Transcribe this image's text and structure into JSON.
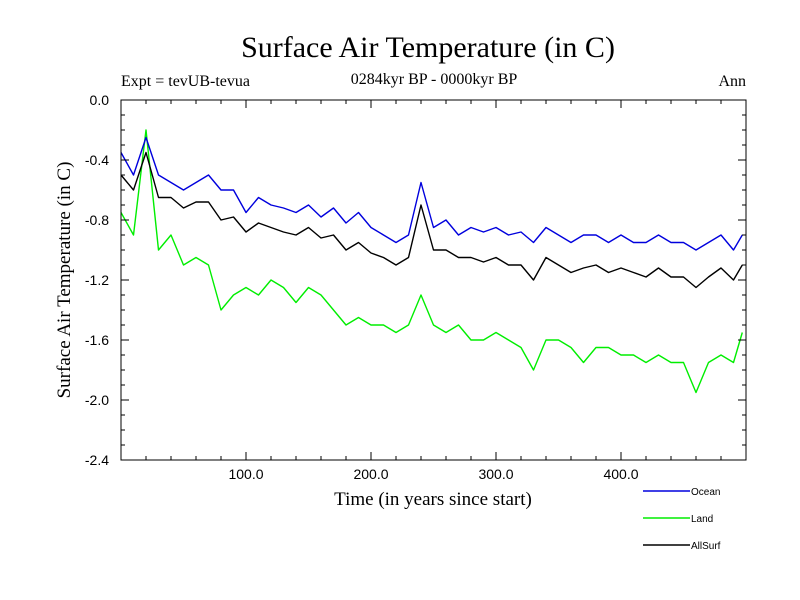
{
  "chart_data": {
    "type": "line",
    "title": "Surface Air Temperature (in C)",
    "subtitle": "0284kyr BP - 0000kyr BP",
    "left_label": "Expt = tevUB-tevua",
    "right_label": "Ann",
    "xlabel": "Time (in years since start)",
    "ylabel": "Surface Air Temperature (in C)",
    "xlim": [
      0,
      500
    ],
    "ylim": [
      -2.4,
      0.0
    ],
    "x_ticks": [
      100,
      200,
      300,
      400
    ],
    "x_tick_labels": [
      "100.0",
      "200.0",
      "300.0",
      "400.0"
    ],
    "y_ticks": [
      0.0,
      -0.4,
      -0.8,
      -1.2,
      -1.6,
      -2.0,
      -2.4
    ],
    "y_tick_labels": [
      "0.0",
      "-0.4",
      "-0.8",
      "-1.2",
      "-1.6",
      "-2.0",
      "-2.4"
    ],
    "legend_position": "bottom-right, below plot",
    "x": [
      0,
      10,
      20,
      30,
      40,
      50,
      60,
      70,
      80,
      90,
      100,
      110,
      120,
      130,
      140,
      150,
      160,
      170,
      180,
      190,
      200,
      210,
      220,
      230,
      240,
      250,
      260,
      270,
      280,
      290,
      300,
      310,
      320,
      330,
      340,
      350,
      360,
      370,
      380,
      390,
      400,
      410,
      420,
      430,
      440,
      450,
      460,
      470,
      480,
      490,
      497
    ],
    "series": [
      {
        "name": "Ocean",
        "color": "#0000dd",
        "values": [
          -0.35,
          -0.5,
          -0.25,
          -0.5,
          -0.55,
          -0.6,
          -0.55,
          -0.5,
          -0.6,
          -0.6,
          -0.75,
          -0.65,
          -0.7,
          -0.72,
          -0.75,
          -0.7,
          -0.78,
          -0.72,
          -0.82,
          -0.75,
          -0.85,
          -0.9,
          -0.95,
          -0.9,
          -0.55,
          -0.85,
          -0.8,
          -0.9,
          -0.85,
          -0.88,
          -0.85,
          -0.9,
          -0.88,
          -0.95,
          -0.85,
          -0.9,
          -0.95,
          -0.9,
          -0.9,
          -0.95,
          -0.9,
          -0.95,
          -0.95,
          -0.9,
          -0.95,
          -0.95,
          -1.0,
          -0.95,
          -0.9,
          -1.0,
          -0.9
        ]
      },
      {
        "name": "Land",
        "color": "#00ee00",
        "values": [
          -0.75,
          -0.9,
          -0.2,
          -1.0,
          -0.9,
          -1.1,
          -1.05,
          -1.1,
          -1.4,
          -1.3,
          -1.25,
          -1.3,
          -1.2,
          -1.25,
          -1.35,
          -1.25,
          -1.3,
          -1.4,
          -1.5,
          -1.45,
          -1.5,
          -1.5,
          -1.55,
          -1.5,
          -1.3,
          -1.5,
          -1.55,
          -1.5,
          -1.6,
          -1.6,
          -1.55,
          -1.6,
          -1.65,
          -1.8,
          -1.6,
          -1.6,
          -1.65,
          -1.75,
          -1.65,
          -1.65,
          -1.7,
          -1.7,
          -1.75,
          -1.7,
          -1.75,
          -1.75,
          -1.95,
          -1.75,
          -1.7,
          -1.75,
          -1.55
        ]
      },
      {
        "name": "AllSurf",
        "color": "#000000",
        "values": [
          -0.5,
          -0.6,
          -0.35,
          -0.65,
          -0.65,
          -0.72,
          -0.68,
          -0.68,
          -0.8,
          -0.78,
          -0.88,
          -0.82,
          -0.85,
          -0.88,
          -0.9,
          -0.85,
          -0.92,
          -0.9,
          -1.0,
          -0.95,
          -1.02,
          -1.05,
          -1.1,
          -1.05,
          -0.7,
          -1.0,
          -1.0,
          -1.05,
          -1.05,
          -1.08,
          -1.05,
          -1.1,
          -1.1,
          -1.2,
          -1.05,
          -1.1,
          -1.15,
          -1.12,
          -1.1,
          -1.15,
          -1.12,
          -1.15,
          -1.18,
          -1.12,
          -1.18,
          -1.18,
          -1.25,
          -1.18,
          -1.12,
          -1.2,
          -1.1
        ]
      }
    ]
  }
}
